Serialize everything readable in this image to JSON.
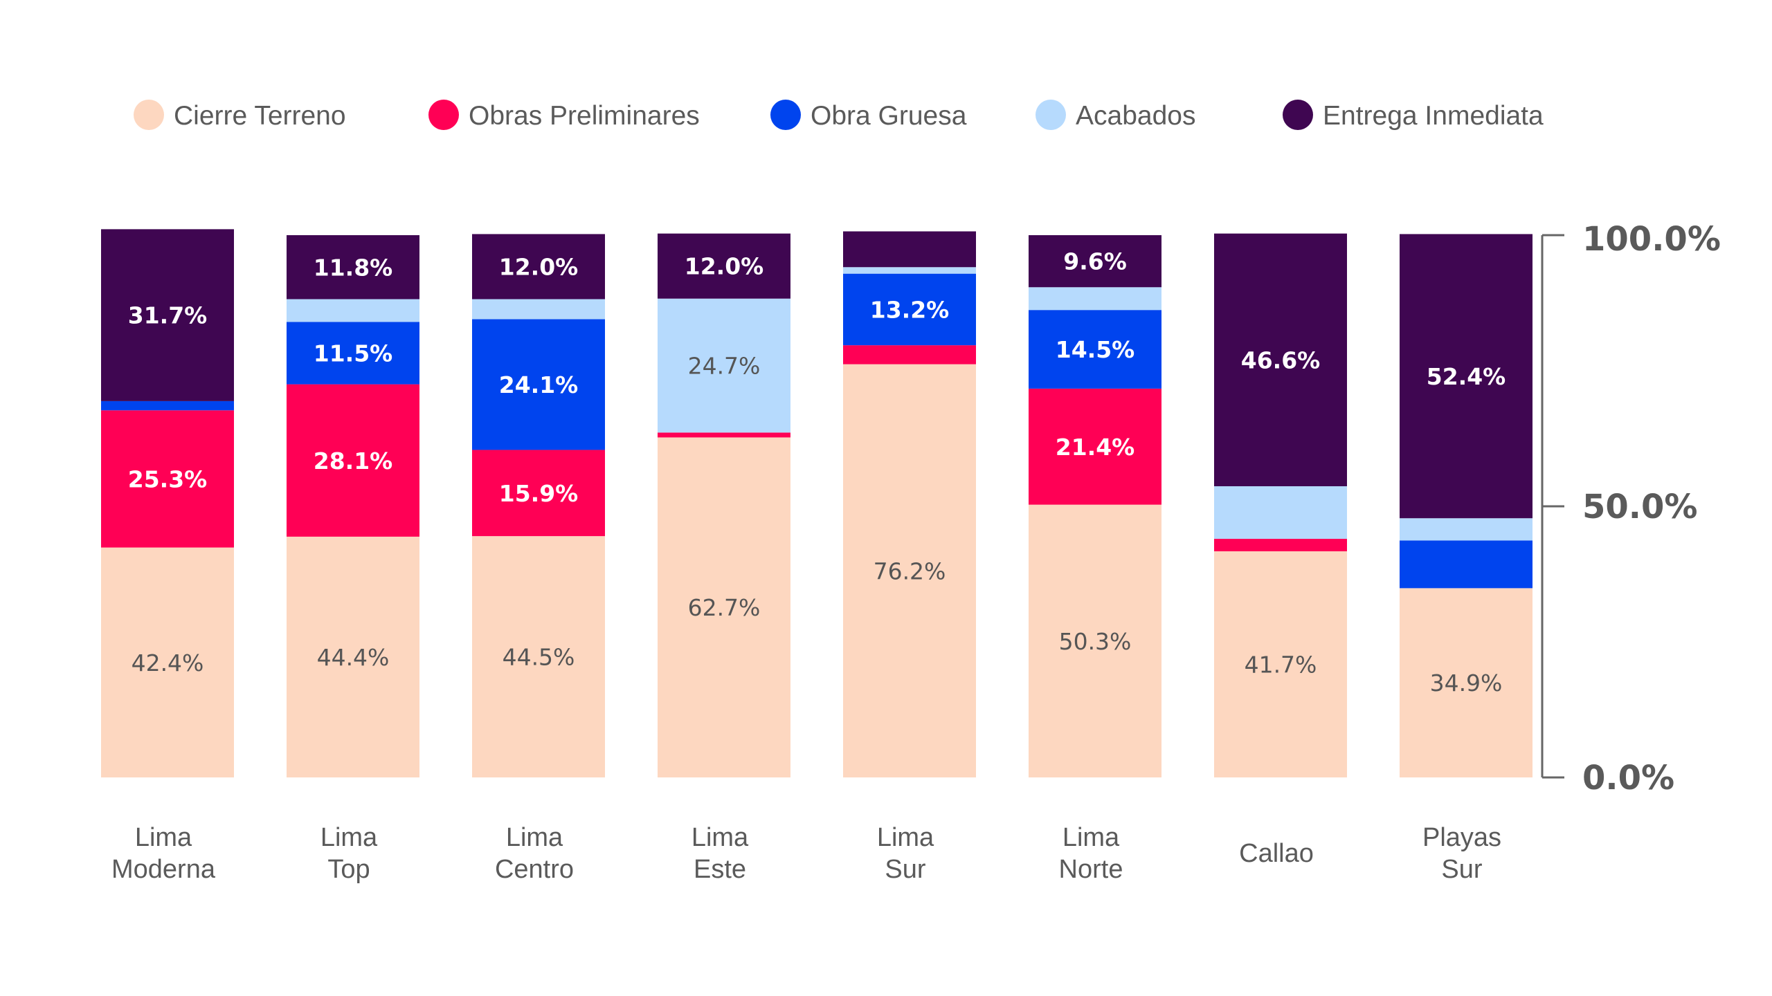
{
  "chart_data": {
    "type": "bar",
    "stacked": true,
    "percent": true,
    "categories": [
      [
        "Lima",
        "Moderna"
      ],
      [
        "Lima",
        "Top"
      ],
      [
        "Lima",
        "Centro"
      ],
      [
        "Lima",
        "Este"
      ],
      [
        "Lima",
        "Sur"
      ],
      [
        "Lima",
        "Norte"
      ],
      [
        "Callao"
      ],
      [
        "Playas",
        "Sur"
      ]
    ],
    "series": [
      {
        "name": "Cierre Terreno",
        "color": "#fdd7c0",
        "label_color": "#555555",
        "values": [
          42.4,
          44.4,
          44.5,
          62.7,
          76.2,
          50.3,
          41.7,
          34.9
        ],
        "labels": [
          "42.4%",
          "44.4%",
          "44.5%",
          "62.7%",
          "76.2%",
          "50.3%",
          "41.7%",
          "34.9%"
        ]
      },
      {
        "name": "Obras Preliminares",
        "color": "#ff0055",
        "label_color": "#ffffff",
        "values": [
          25.3,
          28.1,
          15.9,
          0.9,
          3.5,
          21.4,
          2.3,
          0.0
        ],
        "labels": [
          "25.3%",
          "28.1%",
          "15.9%",
          "",
          "",
          "21.4%",
          "",
          ""
        ]
      },
      {
        "name": "Obra Gruesa",
        "color": "#0044ee",
        "label_color": "#ffffff",
        "values": [
          1.7,
          11.5,
          24.1,
          0.0,
          13.2,
          14.5,
          0.0,
          8.8
        ],
        "labels": [
          "",
          "11.5%",
          "24.1%",
          "",
          "13.2%",
          "14.5%",
          "",
          ""
        ]
      },
      {
        "name": "Acabados",
        "color": "#b6dafd",
        "label_color": "#555555",
        "values": [
          0.0,
          4.2,
          3.7,
          24.7,
          1.2,
          4.2,
          9.7,
          4.1
        ],
        "labels": [
          "",
          "",
          "",
          "24.7%",
          "",
          "",
          "",
          ""
        ]
      },
      {
        "name": "Entrega Inmediata",
        "color": "#3f0651",
        "label_color": "#ffffff",
        "values": [
          31.7,
          11.8,
          12.0,
          12.0,
          6.6,
          9.6,
          46.6,
          52.4
        ],
        "labels": [
          "31.7%",
          "11.8%",
          "12.0%",
          "12.0%",
          "",
          "9.6%",
          "46.6%",
          "52.4%"
        ]
      }
    ],
    "y_axis": {
      "side": "right",
      "ylim": [
        0,
        100
      ],
      "ticks": [
        0,
        50,
        100
      ],
      "tick_labels": [
        "0.0%",
        "50.0%",
        "100.0%"
      ]
    },
    "legend": {
      "position": "top"
    },
    "grid": false
  }
}
